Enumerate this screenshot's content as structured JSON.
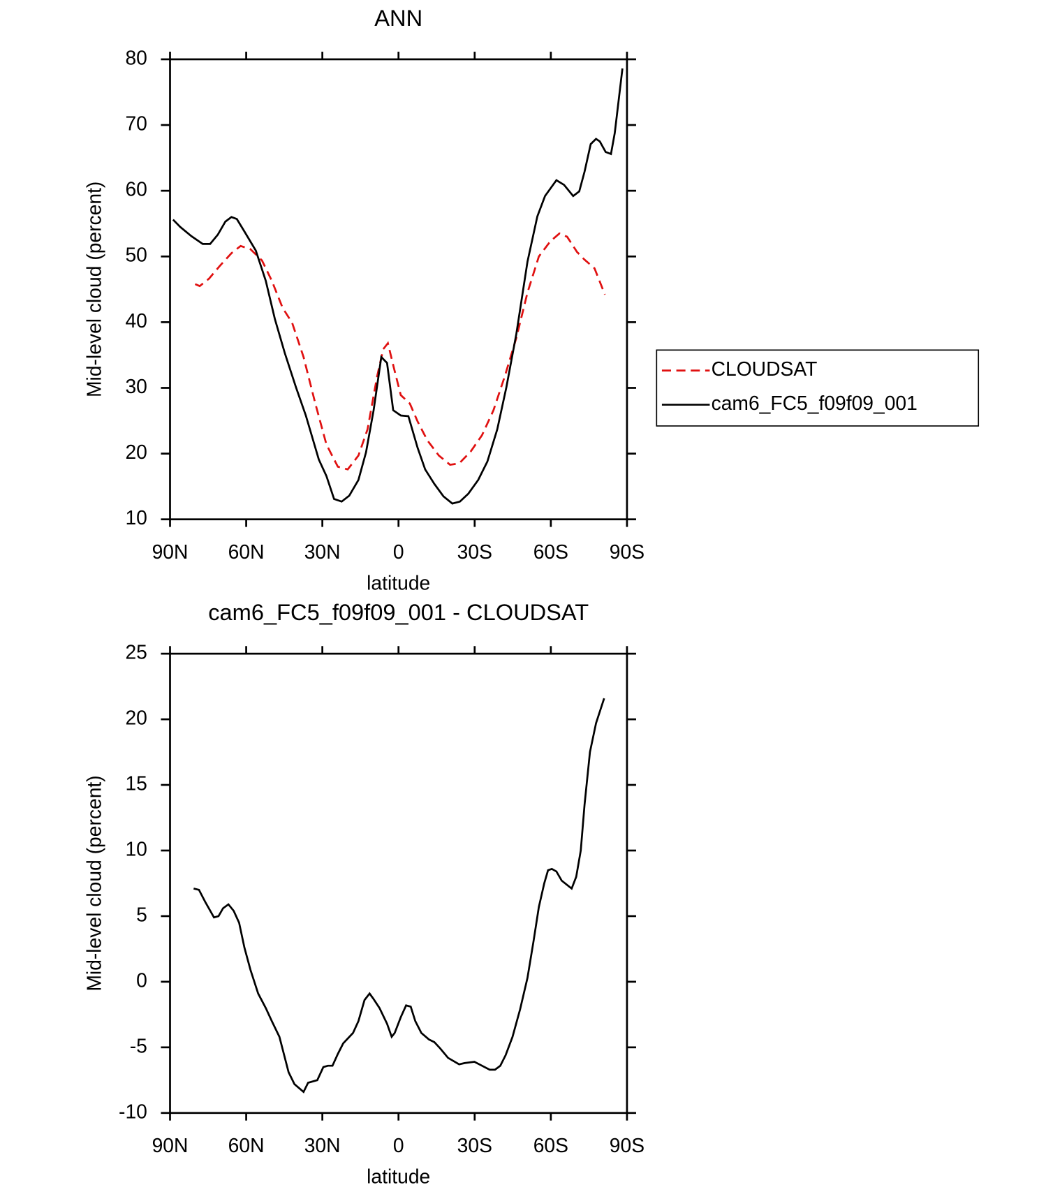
{
  "chart_data": [
    {
      "type": "line",
      "title": "ANN",
      "xlabel": "latitude",
      "ylabel": "Mid-level cloud (percent)",
      "xlim": [
        90,
        -90
      ],
      "ylim": [
        10,
        80
      ],
      "xticks": [
        {
          "value": 90,
          "label": "90N"
        },
        {
          "value": 60,
          "label": "60N"
        },
        {
          "value": 30,
          "label": "30N"
        },
        0,
        {
          "value": -30,
          "label": "30S"
        },
        {
          "value": -60,
          "label": "60S"
        },
        {
          "value": -90,
          "label": "90S"
        }
      ],
      "yticks": [
        10,
        20,
        30,
        40,
        50,
        60,
        70,
        80
      ],
      "legend": "right",
      "series": [
        {
          "name": "CLOUDSAT",
          "color": "#e01010",
          "dash": true,
          "x": [
            80.1,
            78.3,
            74.7,
            70.3,
            65.8,
            62.2,
            58.3,
            53.8,
            49.9,
            45.7,
            41.9,
            37.4,
            32.9,
            28.4,
            23.9,
            20.0,
            15.8,
            12.2,
            8.4,
            6.0,
            4.2,
            1.8,
            -0.9,
            -4.5,
            -7.5,
            -11.4,
            -15.9,
            -20.3,
            -23.9,
            -28.4,
            -32.9,
            -37.4,
            -41.9,
            -46.4,
            -50.8,
            -55.3,
            -59.8,
            -63.4,
            -66.4,
            -70.3,
            -73.3,
            -77.2,
            -81.3
          ],
          "values": [
            45.8,
            45.5,
            46.6,
            48.6,
            50.5,
            51.6,
            51.1,
            49.4,
            46.3,
            42.2,
            39.9,
            34.7,
            27.8,
            21.4,
            18.0,
            17.6,
            19.7,
            23.7,
            31.8,
            35.9,
            36.8,
            33.0,
            28.9,
            27.6,
            24.9,
            22.0,
            19.7,
            18.3,
            18.5,
            20.3,
            22.8,
            26.6,
            31.8,
            37.6,
            44.5,
            50.0,
            52.3,
            53.5,
            53.0,
            50.7,
            49.5,
            48.2,
            44.2
          ]
        },
        {
          "name": "cam6_FC5_f09f09_001",
          "color": "#000000",
          "dash": false,
          "x": [
            88.8,
            86,
            81.6,
            77.1,
            74.2,
            71.2,
            68.2,
            65.8,
            63.7,
            60.7,
            56.2,
            52.3,
            48.7,
            44.8,
            40.4,
            36.5,
            31.4,
            28.4,
            25.4,
            22.4,
            19.4,
            15.8,
            12.8,
            9.8,
            6.8,
            4.5,
            2.1,
            -0.9,
            -3.9,
            -7.5,
            -10.5,
            -14.1,
            -17.7,
            -21.2,
            -24.2,
            -27.5,
            -31.4,
            -35.0,
            -38.9,
            -42.5,
            -46.4,
            -50.8,
            -54.7,
            -57.7,
            -62.2,
            -65.2,
            -68.8,
            -71.2,
            -73.3,
            -75.7,
            -77.8,
            -79.3,
            -81.6,
            -83.7,
            -85.2,
            -88.2
          ],
          "values": [
            55.6,
            54.5,
            53.1,
            51.9,
            51.9,
            53.3,
            55.3,
            56.0,
            55.7,
            53.8,
            50.9,
            46.3,
            40.5,
            35.3,
            30.1,
            25.8,
            19.1,
            16.6,
            13.1,
            12.7,
            13.6,
            16.0,
            20.2,
            26.6,
            34.7,
            33.8,
            26.6,
            25.8,
            25.7,
            20.9,
            17.6,
            15.4,
            13.5,
            12.4,
            12.7,
            13.9,
            16.0,
            18.8,
            23.7,
            30.1,
            38.2,
            49.2,
            56.1,
            59.2,
            61.6,
            60.9,
            59.2,
            59.9,
            62.9,
            67.1,
            67.9,
            67.5,
            65.9,
            65.6,
            68.8,
            78.6
          ]
        }
      ]
    },
    {
      "type": "line",
      "title": "cam6_FC5_f09f09_001 - CLOUDSAT",
      "xlabel": "latitude",
      "ylabel": "Mid-level cloud (percent)",
      "xlim": [
        90,
        -90
      ],
      "ylim": [
        -10,
        25
      ],
      "xticks": [
        {
          "value": 90,
          "label": "90N"
        },
        {
          "value": 60,
          "label": "60N"
        },
        {
          "value": 30,
          "label": "30N"
        },
        0,
        {
          "value": -30,
          "label": "30S"
        },
        {
          "value": -60,
          "label": "60S"
        },
        {
          "value": -90,
          "label": "90S"
        }
      ],
      "yticks": [
        -10,
        -5,
        0,
        5,
        10,
        15,
        20,
        25
      ],
      "series": [
        {
          "color": "#000000",
          "dash": false,
          "x": [
            80.7,
            78.6,
            76.2,
            72.7,
            70.9,
            69.1,
            67.0,
            64.9,
            62.8,
            60.7,
            58.3,
            55.3,
            52.3,
            49.9,
            46.9,
            43.3,
            41.0,
            37.4,
            35.6,
            32.0,
            29.6,
            27.8,
            26.0,
            23.9,
            21.8,
            17.9,
            15.8,
            13.4,
            11.4,
            9.9,
            7.5,
            4.5,
            2.7,
            1.5,
            -0.9,
            -3.0,
            -4.8,
            -6.6,
            -9.0,
            -12.0,
            -14.1,
            -16.5,
            -19.5,
            -23.9,
            -26.0,
            -29.9,
            -32.9,
            -35.9,
            -38.0,
            -40.1,
            -42.2,
            -44.9,
            -47.9,
            -50.8,
            -53.2,
            -55.3,
            -57.4,
            -58.9,
            -60.4,
            -62.2,
            -64.3,
            -68.2,
            -70.0,
            -71.8,
            -73.3,
            -75.4,
            -77.8,
            -81.0
          ],
          "values": [
            7.1,
            7.0,
            6.1,
            4.9,
            5.0,
            5.6,
            5.9,
            5.4,
            4.5,
            2.6,
            0.9,
            -0.9,
            -2.0,
            -3.0,
            -4.2,
            -6.9,
            -7.8,
            -8.4,
            -7.7,
            -7.5,
            -6.5,
            -6.4,
            -6.4,
            -5.5,
            -4.7,
            -3.9,
            -3.0,
            -1.4,
            -0.9,
            -1.3,
            -2.0,
            -3.2,
            -4.2,
            -3.9,
            -2.7,
            -1.8,
            -1.9,
            -3.0,
            -3.9,
            -4.4,
            -4.6,
            -5.1,
            -5.8,
            -6.3,
            -6.2,
            -6.1,
            -6.4,
            -6.7,
            -6.7,
            -6.4,
            -5.6,
            -4.2,
            -2.1,
            0.3,
            3.1,
            5.7,
            7.5,
            8.5,
            8.6,
            8.4,
            7.7,
            7.1,
            8.0,
            10.0,
            13.5,
            17.5,
            19.7,
            21.6
          ]
        }
      ]
    }
  ]
}
